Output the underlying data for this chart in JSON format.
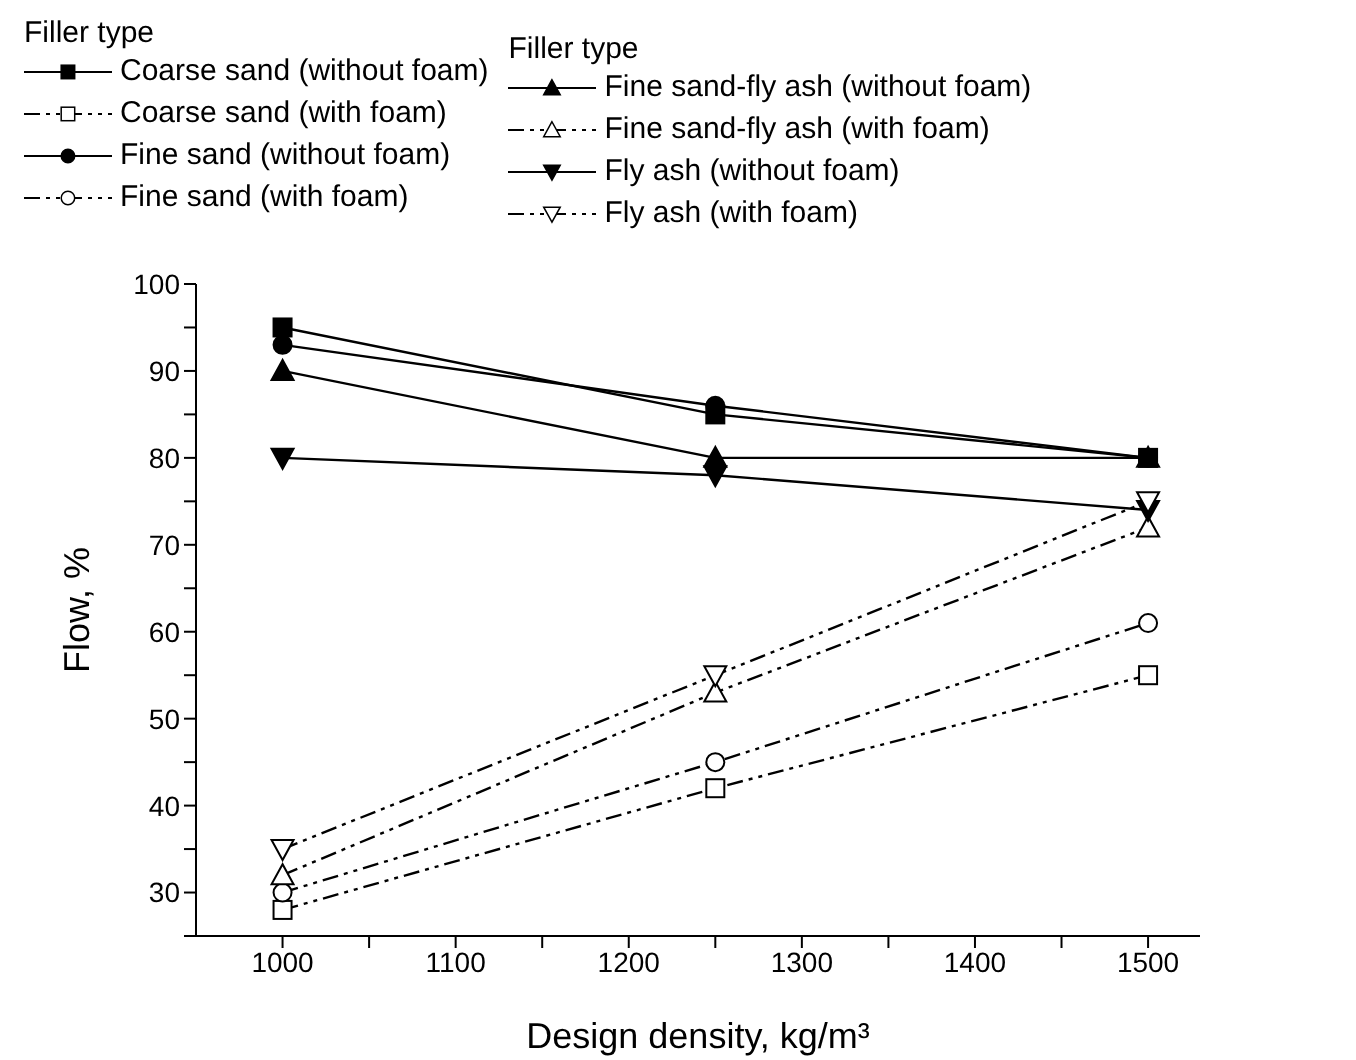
{
  "chart_data": {
    "type": "line",
    "xlabel": "Design density, kg/m³",
    "ylabel": "Flow, %",
    "legend_title": "Filler type",
    "legend": "top",
    "x": [
      1000,
      1250,
      1500
    ],
    "xlim": [
      950,
      1530
    ],
    "xticks": [
      1000,
      {
        "value": 1050,
        "label": null
      },
      1100,
      {
        "value": 1150,
        "label": null
      },
      1200,
      {
        "value": 1250,
        "label": null
      },
      1300,
      {
        "value": 1350,
        "label": null
      },
      1400,
      {
        "value": 1450,
        "label": null
      },
      1500
    ],
    "ylim": [
      25,
      100
    ],
    "yticks": [
      {
        "value": 25,
        "label": null
      },
      30,
      {
        "value": 35,
        "label": null
      },
      40,
      {
        "value": 45,
        "label": null
      },
      50,
      {
        "value": 55,
        "label": null
      },
      60,
      {
        "value": 65,
        "label": null
      },
      70,
      {
        "value": 75,
        "label": null
      },
      80,
      {
        "value": 85,
        "label": null
      },
      90,
      {
        "value": 95,
        "label": null
      },
      100
    ],
    "series": [
      {
        "name": "Coarse sand (without foam)",
        "color": "#000000",
        "marker": "square",
        "line_style": "solid",
        "values": [
          95,
          85,
          80
        ]
      },
      {
        "name": "Coarse sand (with foam)",
        "color": "#000000",
        "marker": "square",
        "line_style": "dashed",
        "values": [
          28,
          42,
          55
        ]
      },
      {
        "name": "Fine sand (without foam)",
        "color": "#000000",
        "marker": "circle",
        "line_style": "solid",
        "values": [
          93,
          86,
          80
        ]
      },
      {
        "name": "Fine sand (with foam)",
        "color": "#000000",
        "marker": "circle",
        "line_style": "dashed",
        "values": [
          30,
          45,
          61
        ]
      },
      {
        "name": "Fine sand-fly ash (without foam)",
        "color": "#000000",
        "marker": "triangle",
        "line_style": "solid",
        "values": [
          90,
          80,
          80
        ]
      },
      {
        "name": "Fine sand-fly ash (with foam)",
        "color": "#000000",
        "marker": "triangle",
        "line_style": "dashed",
        "values": [
          32,
          53,
          72
        ]
      },
      {
        "name": "Fly ash (without foam)",
        "color": "#000000",
        "marker": "triangle-down",
        "line_style": "solid",
        "values": [
          80,
          78,
          74
        ]
      },
      {
        "name": "Fly ash (with foam)",
        "color": "#000000",
        "marker": "triangle-down",
        "line_style": "dashed",
        "values": [
          35,
          55,
          75
        ]
      }
    ]
  }
}
